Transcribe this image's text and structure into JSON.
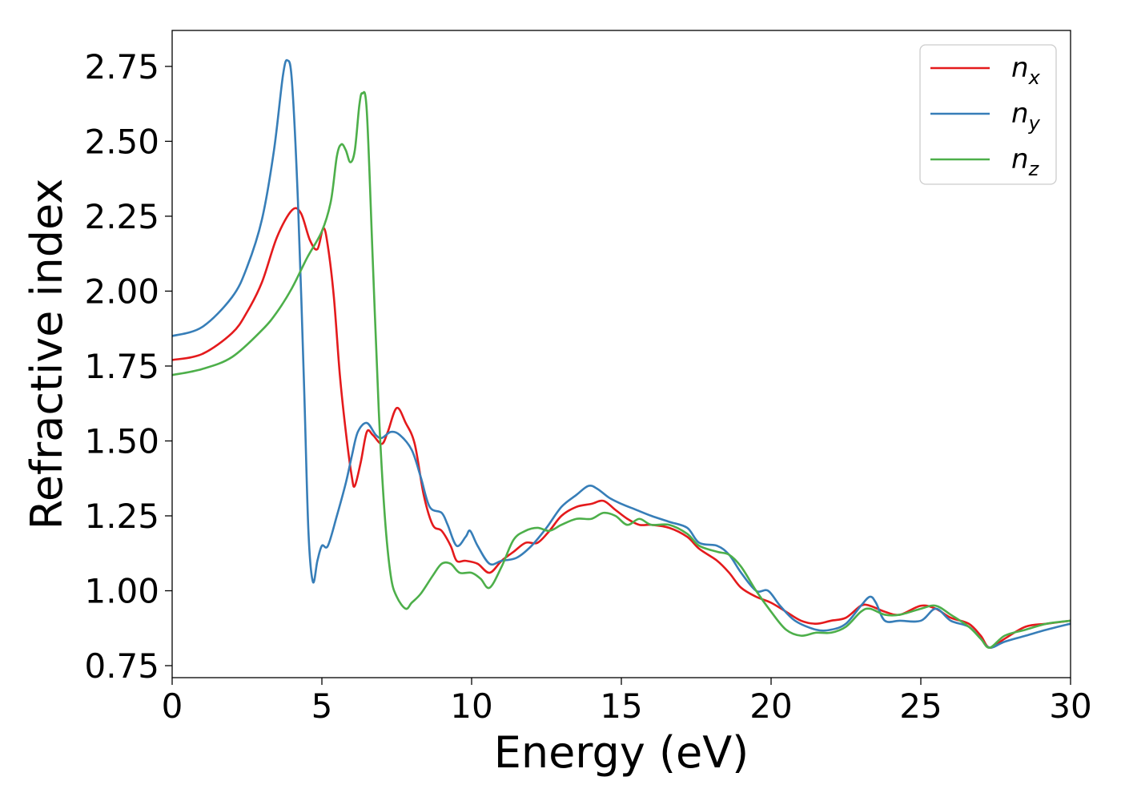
{
  "chart_data": {
    "type": "line",
    "xlabel": "Energy (eV)",
    "ylabel": "Refractive index",
    "xlim": [
      0,
      30
    ],
    "ylim": [
      0.71,
      2.87
    ],
    "xticks": [
      0,
      5,
      10,
      15,
      20,
      25,
      30
    ],
    "xtick_labels": [
      "0",
      "5",
      "10",
      "15",
      "20",
      "25",
      "30"
    ],
    "yticks": [
      0.75,
      1.0,
      1.25,
      1.5,
      1.75,
      2.0,
      2.25,
      2.5,
      2.75
    ],
    "ytick_labels": [
      "0.75",
      "1.00",
      "1.25",
      "1.50",
      "1.75",
      "2.00",
      "2.25",
      "2.50",
      "2.75"
    ],
    "grid": false,
    "legend_position": "top-right",
    "series": [
      {
        "name": "n",
        "subscript": "x",
        "color": "#e41a1c",
        "points": [
          [
            0,
            1.77
          ],
          [
            1,
            1.79
          ],
          [
            2,
            1.86
          ],
          [
            2.5,
            1.93
          ],
          [
            3,
            2.03
          ],
          [
            3.5,
            2.18
          ],
          [
            4,
            2.27
          ],
          [
            4.3,
            2.26
          ],
          [
            4.6,
            2.17
          ],
          [
            4.85,
            2.14
          ],
          [
            5.05,
            2.21
          ],
          [
            5.2,
            2.15
          ],
          [
            5.4,
            1.98
          ],
          [
            5.6,
            1.72
          ],
          [
            5.8,
            1.53
          ],
          [
            6.0,
            1.38
          ],
          [
            6.1,
            1.35
          ],
          [
            6.3,
            1.43
          ],
          [
            6.5,
            1.53
          ],
          [
            6.7,
            1.52
          ],
          [
            7.0,
            1.49
          ],
          [
            7.2,
            1.53
          ],
          [
            7.5,
            1.61
          ],
          [
            7.8,
            1.56
          ],
          [
            8.1,
            1.49
          ],
          [
            8.4,
            1.32
          ],
          [
            8.7,
            1.22
          ],
          [
            9.0,
            1.2
          ],
          [
            9.3,
            1.15
          ],
          [
            9.5,
            1.1
          ],
          [
            9.8,
            1.1
          ],
          [
            10.2,
            1.09
          ],
          [
            10.6,
            1.06
          ],
          [
            11.0,
            1.1
          ],
          [
            11.4,
            1.13
          ],
          [
            11.8,
            1.16
          ],
          [
            12.2,
            1.16
          ],
          [
            12.6,
            1.2
          ],
          [
            13.0,
            1.25
          ],
          [
            13.5,
            1.28
          ],
          [
            14.0,
            1.29
          ],
          [
            14.4,
            1.3
          ],
          [
            14.8,
            1.27
          ],
          [
            15.2,
            1.24
          ],
          [
            15.6,
            1.22
          ],
          [
            16.0,
            1.22
          ],
          [
            16.6,
            1.21
          ],
          [
            17.2,
            1.18
          ],
          [
            17.6,
            1.14
          ],
          [
            18.2,
            1.1
          ],
          [
            18.6,
            1.06
          ],
          [
            19.0,
            1.01
          ],
          [
            19.5,
            0.98
          ],
          [
            20.0,
            0.96
          ],
          [
            20.5,
            0.93
          ],
          [
            21.0,
            0.9
          ],
          [
            21.5,
            0.89
          ],
          [
            22.0,
            0.9
          ],
          [
            22.5,
            0.91
          ],
          [
            23.0,
            0.95
          ],
          [
            23.3,
            0.95
          ],
          [
            23.8,
            0.93
          ],
          [
            24.3,
            0.92
          ],
          [
            25.0,
            0.95
          ],
          [
            25.5,
            0.94
          ],
          [
            26.0,
            0.91
          ],
          [
            26.6,
            0.89
          ],
          [
            27.0,
            0.85
          ],
          [
            27.3,
            0.81
          ],
          [
            27.8,
            0.84
          ],
          [
            28.5,
            0.88
          ],
          [
            29.2,
            0.89
          ],
          [
            30,
            0.9
          ]
        ]
      },
      {
        "name": "n",
        "subscript": "y",
        "color": "#377eb8",
        "points": [
          [
            0,
            1.85
          ],
          [
            1,
            1.88
          ],
          [
            2,
            1.98
          ],
          [
            2.5,
            2.08
          ],
          [
            3,
            2.24
          ],
          [
            3.4,
            2.47
          ],
          [
            3.7,
            2.72
          ],
          [
            3.85,
            2.77
          ],
          [
            4.0,
            2.7
          ],
          [
            4.2,
            2.3
          ],
          [
            4.4,
            1.7
          ],
          [
            4.55,
            1.2
          ],
          [
            4.7,
            1.03
          ],
          [
            4.85,
            1.1
          ],
          [
            5.0,
            1.15
          ],
          [
            5.2,
            1.15
          ],
          [
            5.5,
            1.25
          ],
          [
            5.8,
            1.36
          ],
          [
            6.0,
            1.45
          ],
          [
            6.2,
            1.53
          ],
          [
            6.5,
            1.56
          ],
          [
            6.8,
            1.52
          ],
          [
            7.0,
            1.51
          ],
          [
            7.3,
            1.53
          ],
          [
            7.6,
            1.52
          ],
          [
            8.0,
            1.47
          ],
          [
            8.3,
            1.38
          ],
          [
            8.6,
            1.28
          ],
          [
            9.0,
            1.26
          ],
          [
            9.2,
            1.22
          ],
          [
            9.5,
            1.15
          ],
          [
            9.8,
            1.18
          ],
          [
            9.95,
            1.2
          ],
          [
            10.2,
            1.15
          ],
          [
            10.6,
            1.09
          ],
          [
            11.0,
            1.1
          ],
          [
            11.5,
            1.11
          ],
          [
            12.0,
            1.15
          ],
          [
            12.5,
            1.21
          ],
          [
            13.0,
            1.28
          ],
          [
            13.5,
            1.32
          ],
          [
            13.9,
            1.35
          ],
          [
            14.2,
            1.34
          ],
          [
            14.6,
            1.31
          ],
          [
            15.0,
            1.29
          ],
          [
            15.5,
            1.27
          ],
          [
            16.0,
            1.25
          ],
          [
            16.6,
            1.23
          ],
          [
            17.2,
            1.21
          ],
          [
            17.6,
            1.16
          ],
          [
            18.2,
            1.15
          ],
          [
            18.6,
            1.12
          ],
          [
            19.0,
            1.06
          ],
          [
            19.5,
            1.0
          ],
          [
            19.9,
            1.0
          ],
          [
            20.3,
            0.95
          ],
          [
            20.8,
            0.9
          ],
          [
            21.5,
            0.87
          ],
          [
            22.0,
            0.87
          ],
          [
            22.5,
            0.89
          ],
          [
            23.0,
            0.95
          ],
          [
            23.3,
            0.98
          ],
          [
            23.5,
            0.96
          ],
          [
            23.8,
            0.9
          ],
          [
            24.3,
            0.9
          ],
          [
            25.0,
            0.9
          ],
          [
            25.5,
            0.94
          ],
          [
            26.0,
            0.9
          ],
          [
            26.6,
            0.88
          ],
          [
            27.0,
            0.84
          ],
          [
            27.3,
            0.81
          ],
          [
            27.8,
            0.83
          ],
          [
            28.5,
            0.85
          ],
          [
            29.2,
            0.87
          ],
          [
            30,
            0.89
          ]
        ]
      },
      {
        "name": "n",
        "subscript": "z",
        "color": "#4daf4a",
        "points": [
          [
            0,
            1.72
          ],
          [
            1,
            1.74
          ],
          [
            2,
            1.78
          ],
          [
            3,
            1.87
          ],
          [
            3.5,
            1.93
          ],
          [
            4.0,
            2.01
          ],
          [
            4.5,
            2.11
          ],
          [
            5.0,
            2.2
          ],
          [
            5.3,
            2.3
          ],
          [
            5.5,
            2.45
          ],
          [
            5.65,
            2.49
          ],
          [
            5.8,
            2.47
          ],
          [
            5.95,
            2.43
          ],
          [
            6.1,
            2.47
          ],
          [
            6.25,
            2.62
          ],
          [
            6.35,
            2.66
          ],
          [
            6.5,
            2.6
          ],
          [
            6.7,
            2.1
          ],
          [
            6.9,
            1.6
          ],
          [
            7.1,
            1.25
          ],
          [
            7.3,
            1.05
          ],
          [
            7.5,
            0.98
          ],
          [
            7.8,
            0.94
          ],
          [
            8.0,
            0.96
          ],
          [
            8.3,
            0.99
          ],
          [
            8.7,
            1.05
          ],
          [
            9.0,
            1.09
          ],
          [
            9.3,
            1.09
          ],
          [
            9.6,
            1.06
          ],
          [
            10.0,
            1.06
          ],
          [
            10.3,
            1.04
          ],
          [
            10.6,
            1.01
          ],
          [
            11.0,
            1.08
          ],
          [
            11.4,
            1.17
          ],
          [
            11.8,
            1.2
          ],
          [
            12.2,
            1.21
          ],
          [
            12.6,
            1.2
          ],
          [
            13.0,
            1.22
          ],
          [
            13.5,
            1.24
          ],
          [
            14.0,
            1.24
          ],
          [
            14.4,
            1.26
          ],
          [
            14.8,
            1.25
          ],
          [
            15.2,
            1.22
          ],
          [
            15.6,
            1.24
          ],
          [
            16.0,
            1.22
          ],
          [
            16.6,
            1.22
          ],
          [
            17.2,
            1.19
          ],
          [
            17.6,
            1.15
          ],
          [
            18.2,
            1.13
          ],
          [
            18.6,
            1.12
          ],
          [
            19.0,
            1.08
          ],
          [
            19.5,
            1.0
          ],
          [
            20.0,
            0.93
          ],
          [
            20.5,
            0.87
          ],
          [
            21.0,
            0.85
          ],
          [
            21.5,
            0.86
          ],
          [
            22.0,
            0.86
          ],
          [
            22.5,
            0.88
          ],
          [
            23.0,
            0.93
          ],
          [
            23.3,
            0.94
          ],
          [
            23.8,
            0.92
          ],
          [
            24.3,
            0.92
          ],
          [
            25.0,
            0.94
          ],
          [
            25.5,
            0.95
          ],
          [
            26.0,
            0.92
          ],
          [
            26.6,
            0.88
          ],
          [
            27.0,
            0.84
          ],
          [
            27.3,
            0.81
          ],
          [
            27.8,
            0.85
          ],
          [
            28.5,
            0.87
          ],
          [
            29.2,
            0.89
          ],
          [
            30,
            0.9
          ]
        ]
      }
    ]
  }
}
